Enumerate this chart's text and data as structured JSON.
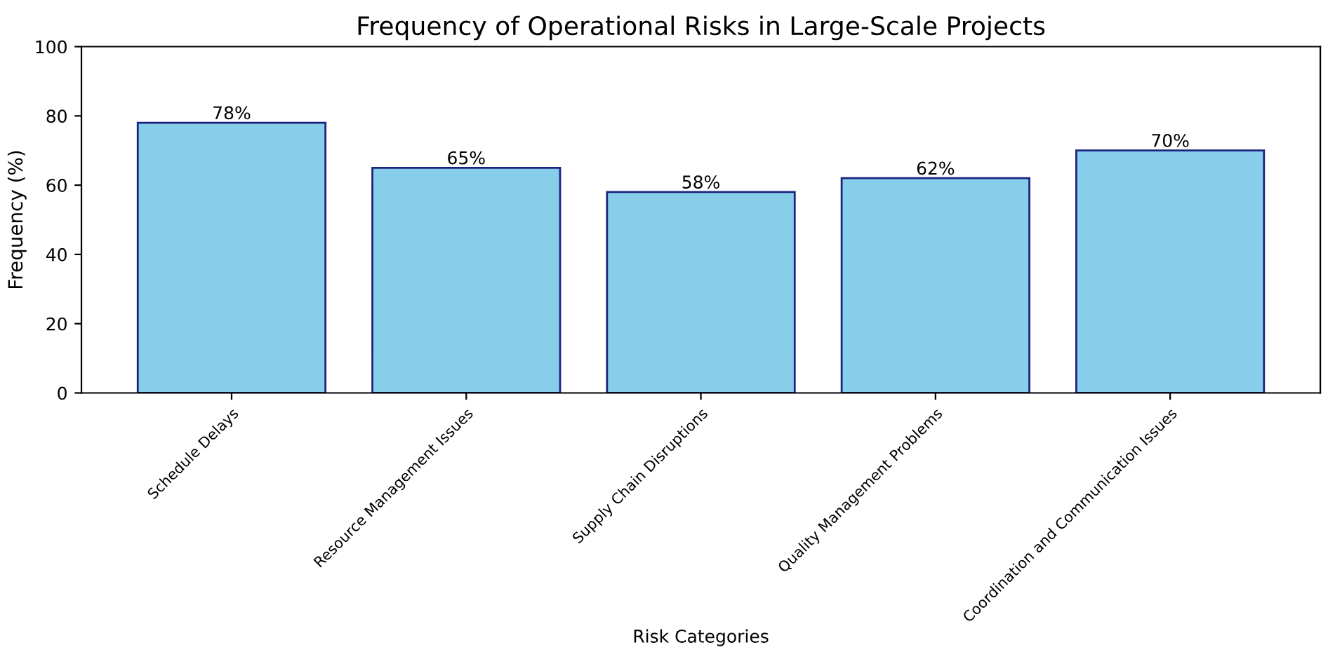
{
  "chart_data": {
    "type": "bar",
    "title": "Frequency of Operational Risks in Large-Scale Projects",
    "xlabel": "Risk Categories",
    "ylabel": "Frequency (%)",
    "categories": [
      "Schedule Delays",
      "Resource Management Issues",
      "Supply Chain Disruptions",
      "Quality Management Problems",
      "Coordination and Communication Issues"
    ],
    "values": [
      78,
      65,
      58,
      62,
      70
    ],
    "value_labels": [
      "78%",
      "65%",
      "58%",
      "62%",
      "70%"
    ],
    "color": "#87ceeb",
    "ylim": [
      0,
      100
    ],
    "yticks": [
      0,
      20,
      40,
      60,
      80,
      100
    ],
    "grid": false,
    "legend": false
  }
}
